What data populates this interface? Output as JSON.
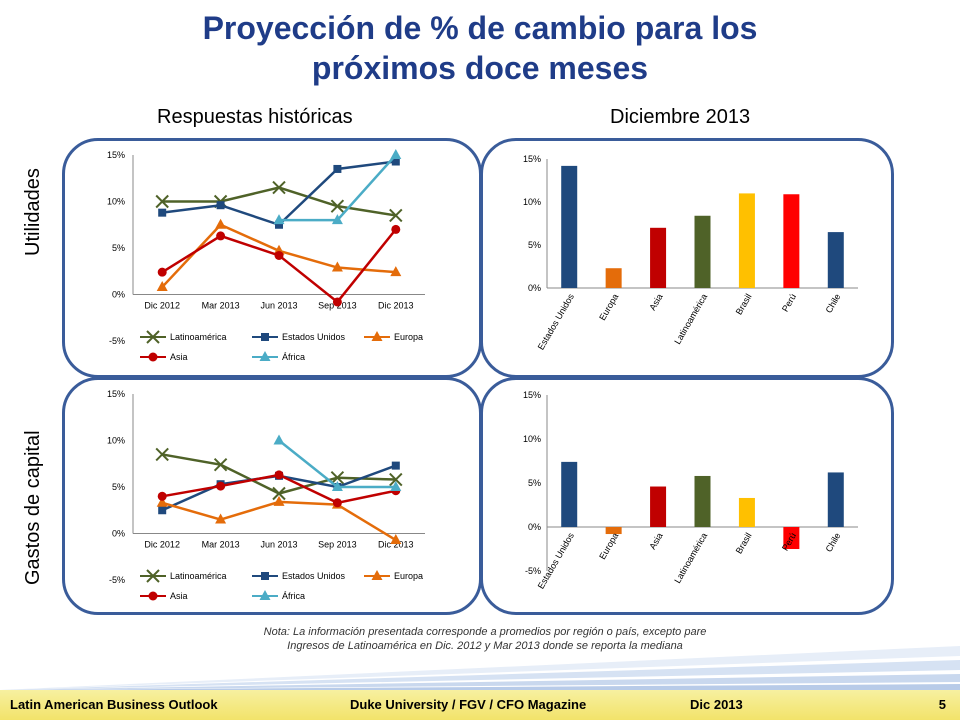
{
  "title_line1": "Proyección de % de cambio para los",
  "title_line2": "próximos doce meses",
  "col_left": "Respuestas históricas",
  "col_right": "Diciembre 2013",
  "row_top": "Utilidades",
  "row_bottom": "Gastos de capital",
  "note": "Nota: La información presentada corresponde a promedios por región o país, excepto pare Ingresos de Latinoamérica en Dic. 2012 y Mar 2013 donde se reporta la mediana",
  "footer": {
    "left": "Latin American Business Outlook",
    "center": "Duke University / FGV / CFO Magazine",
    "date": "Dic 2013",
    "page": "5"
  },
  "colors": {
    "Latinoamérica": "#4f6228",
    "Estados Unidos": "#1f497d",
    "Europa": "#e46c0a",
    "Asia": "#c00000",
    "África": "#4bacc6",
    "Brasil": "#ffc000",
    "Perú": "#ff0000",
    "Chile": "#1f497d",
    "title": "#1f3c88",
    "panel_border": "#3a5c9a"
  },
  "chart_data": [
    {
      "type": "line",
      "categories": [
        "Dic 2012",
        "Mar 2013",
        "Jun 2013",
        "Sep 2013",
        "Dic 2013"
      ],
      "ylim": [
        -5,
        15
      ],
      "yticks": [
        "-5%",
        "0%",
        "5%",
        "10%",
        "15%"
      ],
      "series": [
        {
          "name": "Latinoamérica",
          "marker": "x",
          "values": [
            10,
            10,
            11.5,
            9.5,
            8.5
          ]
        },
        {
          "name": "Estados Unidos",
          "marker": "square",
          "values": [
            8.8,
            9.6,
            7.5,
            13.5,
            14.3
          ]
        },
        {
          "name": "Europa",
          "marker": "triangle",
          "values": [
            0.8,
            7.5,
            4.7,
            2.9,
            2.4
          ]
        },
        {
          "name": "Asia",
          "marker": "circle",
          "values": [
            2.4,
            6.3,
            4.2,
            -0.8,
            7
          ]
        },
        {
          "name": "África",
          "marker": "triangle",
          "values": [
            null,
            null,
            8,
            8,
            15
          ]
        }
      ]
    },
    {
      "type": "bar",
      "categories": [
        "Estados Unidos",
        "Europa",
        "Asia",
        "Latinoamérica",
        "Brasil",
        "Perú",
        "Chile"
      ],
      "values": [
        14.2,
        2.3,
        7,
        8.4,
        11,
        10.9,
        6.5
      ],
      "ylim": [
        0,
        15
      ],
      "yticks": [
        "0%",
        "5%",
        "10%",
        "15%"
      ]
    },
    {
      "type": "line",
      "categories": [
        "Dic 2012",
        "Mar 2013",
        "Jun 2013",
        "Sep 2013",
        "Dic 2013"
      ],
      "ylim": [
        -5,
        15
      ],
      "yticks": [
        "-5%",
        "0%",
        "5%",
        "10%",
        "15%"
      ],
      "series": [
        {
          "name": "Latinoamérica",
          "marker": "x",
          "values": [
            8.5,
            7.4,
            4.3,
            6,
            5.8
          ]
        },
        {
          "name": "Estados Unidos",
          "marker": "square",
          "values": [
            2.5,
            5.3,
            6.2,
            5,
            7.3
          ]
        },
        {
          "name": "Europa",
          "marker": "triangle",
          "values": [
            3.3,
            1.5,
            3.4,
            3.1,
            -0.7
          ]
        },
        {
          "name": "Asia",
          "marker": "circle",
          "values": [
            4,
            5.1,
            6.3,
            3.3,
            4.6
          ]
        },
        {
          "name": "África",
          "marker": "triangle",
          "values": [
            null,
            null,
            10,
            5,
            5
          ]
        }
      ]
    },
    {
      "type": "bar",
      "categories": [
        "Estados Unidos",
        "Europa",
        "Asia",
        "Latinoamérica",
        "Brasil",
        "Perú",
        "Chile"
      ],
      "values": [
        7.4,
        -0.8,
        4.6,
        5.8,
        3.3,
        -2.5,
        6.2
      ],
      "ylim": [
        -5,
        15
      ],
      "yticks": [
        "-5%",
        "0%",
        "5%",
        "10%",
        "15%"
      ]
    }
  ]
}
